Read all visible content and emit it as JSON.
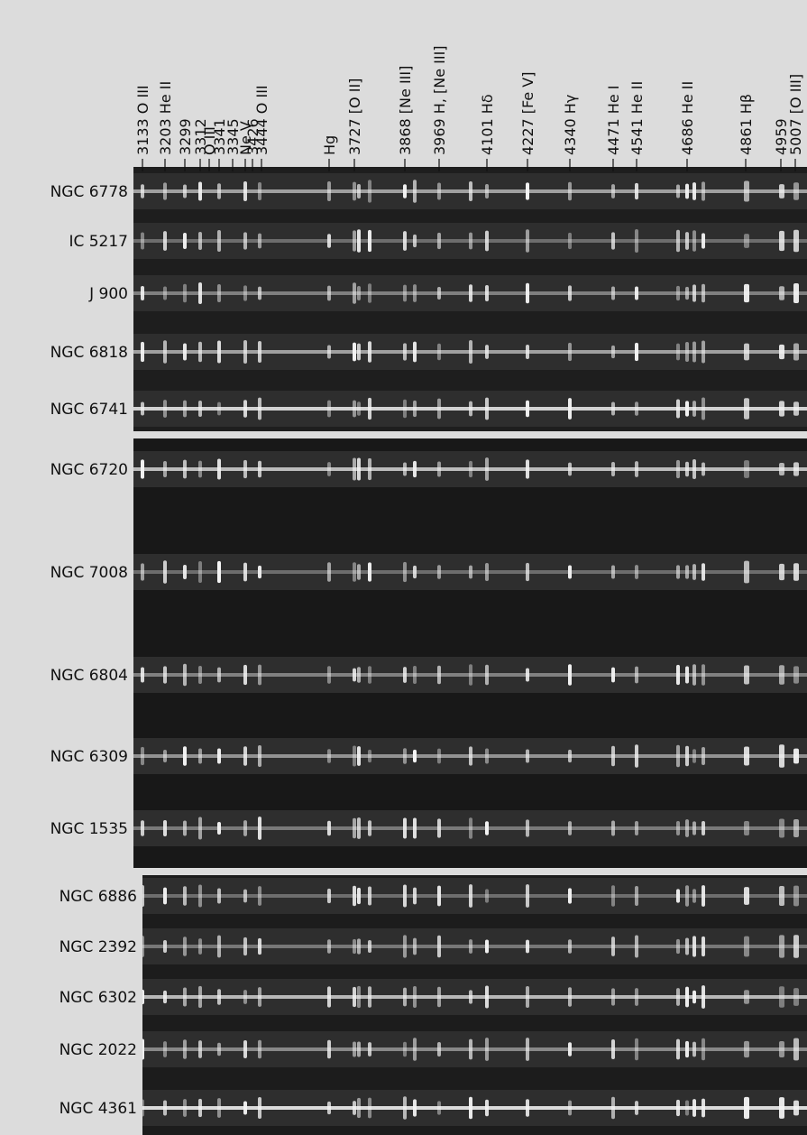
{
  "line_labels": [
    "3133 O III",
    "3203 He II",
    "3299",
    "3312",
    "O III",
    "3341",
    "3345",
    "Ne V",
    "3426",
    "3444 O III",
    "Hg",
    "3727 [O II]",
    "3868 [Ne III]",
    "3969 H, [Ne III]",
    "4101 Hδ",
    "4227 [Fe V]",
    "4340 Hγ",
    "4471 He I",
    "4541 He II",
    "4686 He II",
    "4861 Hβ",
    "4959",
    "5007 [O III]"
  ],
  "objects": [
    "NGC 6778",
    "IC 5217",
    "J 900",
    "NGC 6818",
    "NGC 6741",
    "NGC 6720",
    "NGC 7008",
    "NGC 6804",
    "NGC 6309",
    "NGC 1535",
    "NGC 6886",
    "NGC 2392",
    "NGC 6302",
    "NGC 2022",
    "NGC 4361"
  ]
}
